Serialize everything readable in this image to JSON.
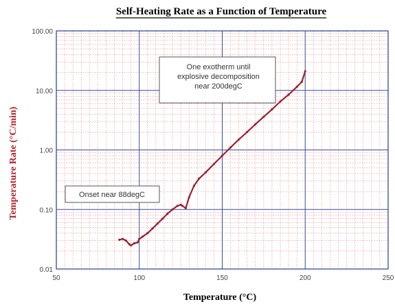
{
  "chart_data": {
    "type": "line",
    "title": "Self-Heating Rate as a Function of Temperature",
    "xlabel": "Temperature (°C)",
    "ylabel": "Temperature Rate (°C/min)",
    "x_scale": "linear",
    "y_scale": "log",
    "xlim": [
      50,
      250
    ],
    "ylim": [
      0.01,
      100
    ],
    "x_ticks": [
      50,
      100,
      150,
      200,
      250
    ],
    "x_tick_labels": [
      "50",
      "100",
      "150",
      "200",
      "250"
    ],
    "y_ticks": [
      0.01,
      0.1,
      1,
      10,
      100
    ],
    "y_tick_labels": [
      "0.01",
      "0.10",
      "1.00",
      "10.00",
      "100.00"
    ],
    "grid": true,
    "series": [
      {
        "x": [
          88,
          90,
          92,
          94,
          95,
          97,
          99,
          100,
          102,
          105,
          108,
          111,
          114,
          117,
          120,
          123,
          125,
          126,
          128,
          130,
          133,
          136,
          140,
          145,
          150,
          155,
          160,
          165,
          170,
          175,
          180,
          185,
          190,
          195,
          198,
          200
        ],
        "y": [
          0.031,
          0.032,
          0.03,
          0.026,
          0.025,
          0.027,
          0.028,
          0.032,
          0.035,
          0.04,
          0.048,
          0.058,
          0.07,
          0.085,
          0.1,
          0.115,
          0.12,
          0.115,
          0.105,
          0.16,
          0.25,
          0.33,
          0.42,
          0.58,
          0.8,
          1.1,
          1.5,
          2.0,
          2.7,
          3.6,
          4.8,
          6.5,
          8.5,
          11.5,
          14.0,
          21.0
        ],
        "color": "#9b2230"
      }
    ],
    "annotations": [
      {
        "text_lines": [
          "One exotherm until",
          "explosive decomposition",
          "near 200degC"
        ]
      },
      {
        "text_lines": [
          "Onset near 88degC"
        ]
      }
    ],
    "colors": {
      "major_grid": "#3848a0",
      "minor_grid": "#e88a8a",
      "ylabel": "#b8202a",
      "series": "#9b2230"
    }
  }
}
